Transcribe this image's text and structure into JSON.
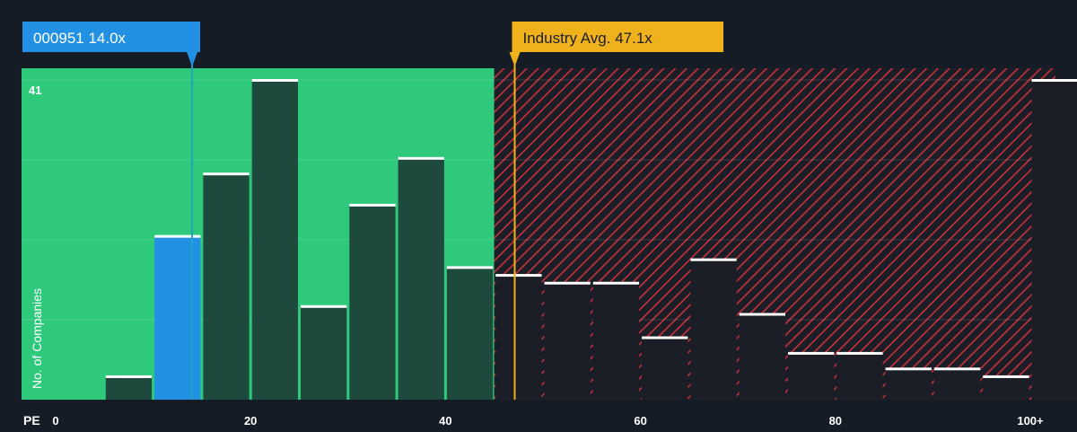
{
  "chart_data": {
    "type": "bar",
    "title": "",
    "xlabel": "PE",
    "ylabel": "No. of Companies",
    "x_tick_labels": [
      "0",
      "20",
      "40",
      "60",
      "80",
      "100+"
    ],
    "x_tick_values": [
      0,
      20,
      40,
      60,
      80,
      100
    ],
    "xlim": [
      0,
      102.5
    ],
    "ylim": [
      0,
      41
    ],
    "y_max_label": "41",
    "bin_width": 5,
    "bins": [
      {
        "x0": 5,
        "value": 3
      },
      {
        "x0": 10,
        "value": 21
      },
      {
        "x0": 15,
        "value": 29
      },
      {
        "x0": 20,
        "value": 41
      },
      {
        "x0": 25,
        "value": 12
      },
      {
        "x0": 30,
        "value": 25
      },
      {
        "x0": 35,
        "value": 31
      },
      {
        "x0": 40,
        "value": 17
      },
      {
        "x0": 45,
        "value": 16
      },
      {
        "x0": 50,
        "value": 15
      },
      {
        "x0": 55,
        "value": 15
      },
      {
        "x0": 60,
        "value": 8
      },
      {
        "x0": 65,
        "value": 18
      },
      {
        "x0": 70,
        "value": 11
      },
      {
        "x0": 75,
        "value": 6
      },
      {
        "x0": 80,
        "value": 6
      },
      {
        "x0": 85,
        "value": 4
      },
      {
        "x0": 90,
        "value": 4
      },
      {
        "x0": 95,
        "value": 3
      },
      {
        "x0": 100,
        "value": 41
      }
    ],
    "highlight_bin_x0": 10,
    "undervalued_threshold": 45,
    "company": {
      "label": "000951 14.0x",
      "pe": 14.0
    },
    "industry": {
      "label": "Industry Avg. 47.1x",
      "pe": 47.1
    },
    "grid": true
  },
  "colors": {
    "background": "#161c26",
    "green_zone": "#2ec97a",
    "bar_green": "#1d4a3c",
    "bar_dark": "#1b1d27",
    "bar_cap": "#ffffff",
    "highlight_bar": "#2391e3",
    "hatch_red": "#c8323c",
    "industry_line": "#efb21d",
    "company_label_bg": "#2391e3",
    "industry_label_bg": "#efb21d",
    "industry_label_text": "#1b1d27",
    "axis_text": "#ffffff"
  }
}
